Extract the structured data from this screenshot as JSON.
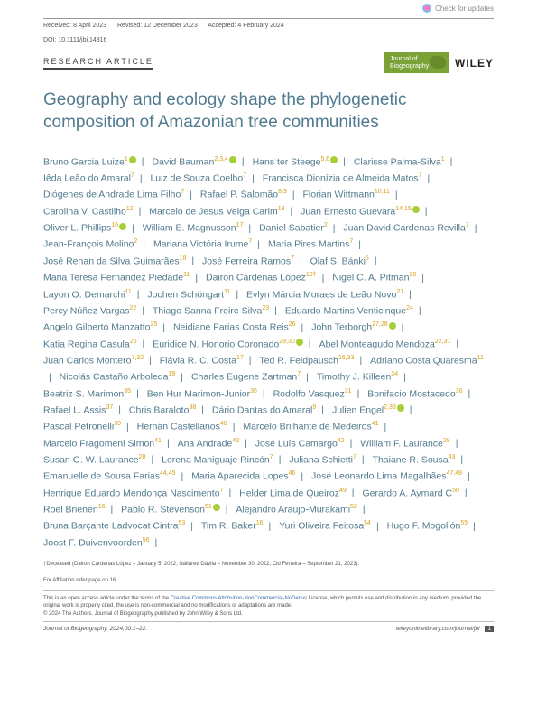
{
  "updates_label": "Check for updates",
  "meta": {
    "received": "Received: 8 April 2023",
    "revised": "Revised: 12 December 2023",
    "accepted": "Accepted: 4 February 2024",
    "doi": "DOI: 10.1111/jbi.14816"
  },
  "article_type": "RESEARCH ARTICLE",
  "journal_name": "Journal of Biogeography",
  "publisher": "WILEY",
  "title": "Geography and ecology shape the phylogenetic composition of Amazonian tree communities",
  "authors": [
    {
      "n": "Bruno Garcia Luize",
      "a": "1",
      "o": true
    },
    {
      "n": "David Bauman",
      "a": "2,3,4",
      "o": true
    },
    {
      "n": "Hans ter Steege",
      "a": "5,6",
      "o": true
    },
    {
      "n": "Clarisse Palma-Silva",
      "a": "1"
    },
    {
      "n": "Iêda Leão do Amaral",
      "a": "7"
    },
    {
      "n": "Luiz de Souza Coelho",
      "a": "7"
    },
    {
      "n": "Francisca Dionízia de Almeida Matos",
      "a": "7"
    },
    {
      "n": "Diógenes de Andrade Lima Filho",
      "a": "7"
    },
    {
      "n": "Rafael P. Salomão",
      "a": "8,9"
    },
    {
      "n": "Florian Wittmann",
      "a": "10,11"
    },
    {
      "n": "Carolina V. Castilho",
      "a": "12"
    },
    {
      "n": "Marcelo de Jesus Veiga Carim",
      "a": "13"
    },
    {
      "n": "Juan Ernesto Guevara",
      "a": "14,15",
      "o": true
    },
    {
      "n": "Oliver L. Phillips",
      "a": "16",
      "o": true
    },
    {
      "n": "William E. Magnusson",
      "a": "17"
    },
    {
      "n": "Daniel Sabatier",
      "a": "2"
    },
    {
      "n": "Juan David Cardenas Revilla",
      "a": "7"
    },
    {
      "n": "Jean-François Molino",
      "a": "2"
    },
    {
      "n": "Mariana Victória Irume",
      "a": "7"
    },
    {
      "n": "Maria Pires Martins",
      "a": "7"
    },
    {
      "n": "José Renan da Silva Guimarães",
      "a": "18"
    },
    {
      "n": "José Ferreira Ramos",
      "a": "7"
    },
    {
      "n": "Olaf S. Bánki",
      "a": "5"
    },
    {
      "n": "Maria Teresa Fernandez Piedade",
      "a": "11"
    },
    {
      "n": "Dairon Cárdenas López",
      "a": "19†"
    },
    {
      "n": "Nigel C. A. Pitman",
      "a": "20"
    },
    {
      "n": "Layon O. Demarchi",
      "a": "11"
    },
    {
      "n": "Jochen Schöngart",
      "a": "11"
    },
    {
      "n": "Evlyn Márcia Moraes de Leão Novo",
      "a": "21"
    },
    {
      "n": "Percy Núñez Vargas",
      "a": "22"
    },
    {
      "n": "Thiago Sanna Freire Silva",
      "a": "23"
    },
    {
      "n": "Eduardo Martins Venticinque",
      "a": "24"
    },
    {
      "n": "Angelo Gilberto Manzatto",
      "a": "25"
    },
    {
      "n": "Neidiane Farias Costa Reis",
      "a": "26"
    },
    {
      "n": "John Terborgh",
      "a": "27,28",
      "o": true
    },
    {
      "n": "Katia Regina Casula",
      "a": "26"
    },
    {
      "n": "Euridice N. Honorio Coronado",
      "a": "29,30",
      "o": true
    },
    {
      "n": "Abel Monteagudo Mendoza",
      "a": "22,31"
    },
    {
      "n": "Juan Carlos Montero",
      "a": "7,32"
    },
    {
      "n": "Flávia R. C. Costa",
      "a": "17"
    },
    {
      "n": "Ted R. Feldpausch",
      "a": "16,33"
    },
    {
      "n": "Adriano Costa Quaresma",
      "a": "11"
    },
    {
      "n": "Nicolás Castaño Arboleda",
      "a": "19"
    },
    {
      "n": "Charles Eugene Zartman",
      "a": "7"
    },
    {
      "n": "Timothy J. Killeen",
      "a": "34"
    },
    {
      "n": "Beatriz S. Marimon",
      "a": "35"
    },
    {
      "n": "Ben Hur Marimon-Junior",
      "a": "35"
    },
    {
      "n": "Rodolfo Vasquez",
      "a": "31"
    },
    {
      "n": "Bonifacio Mostacedo",
      "a": "36"
    },
    {
      "n": "Rafael L. Assis",
      "a": "37"
    },
    {
      "n": "Chris Baraloto",
      "a": "38"
    },
    {
      "n": "Dário Dantas do Amaral",
      "a": "9"
    },
    {
      "n": "Julien Engel",
      "a": "2,38",
      "o": true
    },
    {
      "n": "Pascal Petronelli",
      "a": "39"
    },
    {
      "n": "Hernán Castellanos",
      "a": "40"
    },
    {
      "n": "Marcelo Brilhante de Medeiros",
      "a": "41"
    },
    {
      "n": "Marcelo Fragomeni Simon",
      "a": "41"
    },
    {
      "n": "Ana Andrade",
      "a": "42"
    },
    {
      "n": "José Luís Camargo",
      "a": "42"
    },
    {
      "n": "William F. Laurance",
      "a": "28"
    },
    {
      "n": "Susan G. W. Laurance",
      "a": "28"
    },
    {
      "n": "Lorena Maniguaje Rincón",
      "a": "7"
    },
    {
      "n": "Juliana Schietti",
      "a": "7"
    },
    {
      "n": "Thaiane R. Sousa",
      "a": "43"
    },
    {
      "n": "Emanuelle de Sousa Farias",
      "a": "44,45"
    },
    {
      "n": "Maria Aparecida Lopes",
      "a": "46"
    },
    {
      "n": "José Leonardo Lima Magalhães",
      "a": "47,48"
    },
    {
      "n": "Henrique Eduardo Mendonça Nascimento",
      "a": "7"
    },
    {
      "n": "Helder Lima de Queiroz",
      "a": "49"
    },
    {
      "n": "Gerardo A. Aymard C",
      "a": "50"
    },
    {
      "n": "Roel Brienen",
      "a": "16"
    },
    {
      "n": "Pablo R. Stevenson",
      "a": "51",
      "o": true
    },
    {
      "n": "Alejandro Araujo-Murakami",
      "a": "52"
    },
    {
      "n": "Bruna Barçante Ladvocat Cintra",
      "a": "53"
    },
    {
      "n": "Tim R. Baker",
      "a": "16"
    },
    {
      "n": "Yuri Oliveira Feitosa",
      "a": "54"
    },
    {
      "n": "Hugo F. Mogollón",
      "a": "55"
    },
    {
      "n": "Joost F. Duivenvoorden",
      "a": "56"
    }
  ],
  "deceased_note": "†Deceased (Dairon Cárdenas López – January 5, 2022; Nállarett Dávila – November 30, 2022; Cid Ferreira – September 21, 2023).",
  "affiliation_note": "For Affiliation refer page on 16",
  "license_text1": "This is an open access article under the terms of the ",
  "license_link": "Creative Commons Attribution-NonCommercial-NoDerivs",
  "license_text2": " License, which permits use and distribution in any medium, provided the original work is properly cited, the use is non-commercial and no modifications or adaptations are made.",
  "copyright": "© 2024 The Authors. Journal of Biogeography published by John Wiley & Sons Ltd.",
  "footer_left": "Journal of Biogeography. 2024;00:1–22.",
  "footer_right": "wileyonlinelibrary.com/journal/jbi",
  "page_num": "1"
}
